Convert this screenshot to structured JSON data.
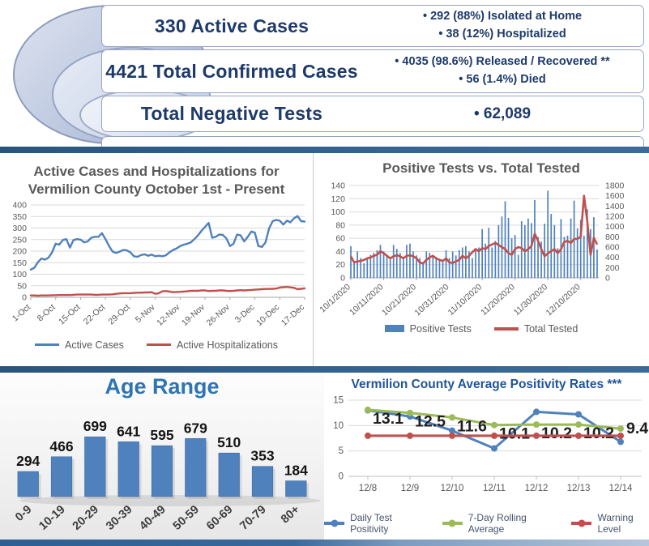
{
  "banner": {
    "rows": [
      {
        "label": "330 Active Cases",
        "bullets": [
          "• 292 (88%) Isolated at Home",
          "• 38 (12%) Hospitalized"
        ]
      },
      {
        "label": "4421 Total Confirmed Cases",
        "bullets": [
          "• 4035 (98.6%) Released / Recovered **",
          "• 56 (1.4%) Died"
        ]
      },
      {
        "label": "Total Negative Tests",
        "value": "• 62,089"
      }
    ]
  },
  "colors": {
    "navy_text": "#1d3a6b",
    "divider_blue": "#31608d",
    "series_blue": "#4F81BD",
    "series_red": "#C0504D",
    "series_green": "#9BBB59",
    "gray_title": "#595959",
    "age_title_blue": "#2e74b5",
    "positivity_title_blue": "#1f5597"
  },
  "chart_data": [
    {
      "id": "active-cases",
      "type": "line",
      "title": "Active Cases and Hospitalizations for Vermilion County October 1st - Present",
      "title_lines": [
        "Active Cases and Hospitalizations for",
        "Vermilion County October 1st - Present"
      ],
      "x_tick_labels": [
        "1-Oct",
        "8-Oct",
        "15-Oct",
        "22-Oct",
        "29-Oct",
        "5-Nov",
        "12-Nov",
        "19-Nov",
        "26-Nov",
        "3-Dec",
        "10-Dec",
        "17-Dec"
      ],
      "x_tick_every": 7,
      "ylim": [
        0,
        400
      ],
      "yticks": [
        0,
        50,
        100,
        150,
        200,
        250,
        300,
        350,
        400
      ],
      "grid": true,
      "legend_position": "bottom",
      "series": [
        {
          "name": "Active Cases",
          "color": "#4F81BD",
          "values": [
            120,
            128,
            152,
            168,
            163,
            172,
            195,
            232,
            228,
            248,
            252,
            215,
            248,
            252,
            250,
            238,
            242,
            258,
            262,
            262,
            278,
            252,
            222,
            198,
            192,
            198,
            205,
            203,
            195,
            178,
            175,
            183,
            186,
            180,
            185,
            178,
            180,
            178,
            182,
            195,
            205,
            212,
            222,
            228,
            232,
            238,
            252,
            268,
            288,
            305,
            322,
            258,
            262,
            272,
            270,
            255,
            222,
            232,
            272,
            268,
            242,
            262,
            285,
            280,
            222,
            218,
            238,
            298,
            330,
            335,
            332,
            315,
            332,
            325,
            342,
            352,
            330,
            328
          ]
        },
        {
          "name": "Active Hospitalizations",
          "color": "#C0504D",
          "values": [
            8,
            8,
            7,
            8,
            8,
            8,
            9,
            9,
            10,
            10,
            10,
            10,
            11,
            12,
            12,
            12,
            12,
            12,
            11,
            11,
            12,
            12,
            12,
            13,
            15,
            17,
            18,
            18,
            18,
            19,
            20,
            20,
            21,
            21,
            22,
            15,
            18,
            26,
            27,
            25,
            22,
            23,
            24,
            25,
            26,
            28,
            28,
            28,
            30,
            30,
            27,
            28,
            28,
            30,
            30,
            28,
            27,
            28,
            30,
            31,
            30,
            31,
            32,
            33,
            34,
            35,
            36,
            36,
            37,
            38,
            42,
            44,
            45,
            43,
            41,
            35,
            37,
            39
          ]
        }
      ]
    },
    {
      "id": "positive-tests",
      "type": "combo-bar-line",
      "title": "Positive Tests vs. Total Tested",
      "x_tick_labels": [
        "10/1/2020",
        "10/11/2020",
        "10/21/2020",
        "10/31/2020",
        "11/10/2020",
        "11/20/2020",
        "11/30/2020",
        "12/10/2020"
      ],
      "x_tick_every": 10,
      "ylim_left": [
        0,
        140
      ],
      "yticks_left": [
        0,
        20,
        40,
        60,
        80,
        100,
        120,
        140
      ],
      "ylim_right": [
        0,
        1800
      ],
      "yticks_right": [
        0,
        200,
        400,
        600,
        800,
        1000,
        1200,
        1400,
        1600,
        1800
      ],
      "grid": true,
      "legend_position": "bottom",
      "series": [
        {
          "name": "Positive Tests",
          "type": "bar",
          "axis": "left",
          "color": "#4F81BD",
          "values": [
            48,
            25,
            40,
            30,
            22,
            28,
            35,
            38,
            42,
            50,
            40,
            34,
            28,
            50,
            44,
            38,
            28,
            50,
            52,
            40,
            34,
            30,
            24,
            40,
            38,
            34,
            30,
            26,
            24,
            42,
            30,
            40,
            34,
            42,
            46,
            48,
            40,
            30,
            44,
            46,
            74,
            52,
            76,
            46,
            56,
            80,
            93,
            116,
            91,
            60,
            65,
            35,
            86,
            80,
            90,
            83,
            118,
            62,
            55,
            82,
            132,
            97,
            80,
            45,
            89,
            62,
            64,
            90,
            117,
            75,
            88,
            64,
            104,
            74,
            92,
            43
          ]
        },
        {
          "name": "Total Tested",
          "type": "line",
          "axis": "right",
          "color": "#C0504D",
          "values": [
            420,
            300,
            320,
            330,
            350,
            380,
            400,
            430,
            450,
            520,
            480,
            430,
            380,
            420,
            440,
            420,
            380,
            430,
            440,
            420,
            380,
            300,
            280,
            350,
            400,
            430,
            380,
            350,
            330,
            380,
            300,
            290,
            320,
            350,
            430,
            380,
            430,
            500,
            560,
            520,
            580,
            560,
            620,
            650,
            680,
            640,
            600,
            560,
            480,
            450,
            560,
            600,
            580,
            520,
            560,
            620,
            860,
            720,
            560,
            420,
            480,
            520,
            560,
            480,
            560,
            700,
            720,
            680,
            760,
            760,
            800,
            1600,
            1100,
            450,
            780,
            650
          ]
        }
      ]
    },
    {
      "id": "age-range",
      "type": "bar",
      "title": "Age Range",
      "categories": [
        "0-9",
        "10-19",
        "20-29",
        "30-39",
        "40-49",
        "50-59",
        "60-69",
        "70-79",
        "80+"
      ],
      "values": [
        294,
        466,
        699,
        641,
        595,
        679,
        510,
        353,
        184
      ],
      "bar_color": "#4F81BD",
      "data_labels": true
    },
    {
      "id": "positivity",
      "type": "line",
      "title": "Vermilion County Average Positivity Rates ***",
      "x_tick_labels": [
        "12/8",
        "12/9",
        "12/10",
        "12/11",
        "12/12",
        "12/13",
        "12/14"
      ],
      "ylim": [
        0,
        15
      ],
      "yticks": [
        0,
        5,
        10,
        15
      ],
      "grid": true,
      "legend_position": "bottom",
      "series": [
        {
          "name": "Daily Test Positivity",
          "color": "#4F81BD",
          "values": [
            13.0,
            11.8,
            9.0,
            5.5,
            12.7,
            12.2,
            6.8
          ]
        },
        {
          "name": "7-Day Rolling Average",
          "color": "#9BBB59",
          "data_labels": true,
          "values": [
            13.1,
            12.5,
            11.6,
            10.1,
            10.2,
            10.2,
            9.4
          ]
        },
        {
          "name": "Warning Level",
          "color": "#C0504D",
          "values": [
            8,
            8,
            8,
            8,
            8,
            8,
            8
          ]
        }
      ]
    }
  ]
}
